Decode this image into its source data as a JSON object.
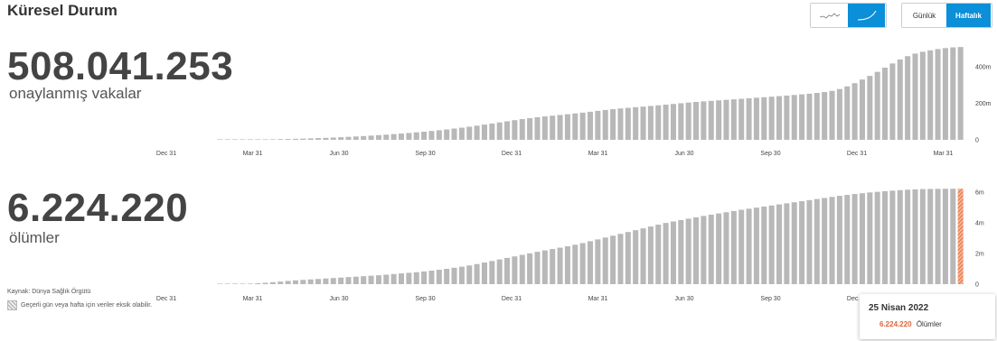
{
  "header": {
    "title": "Küresel Durum"
  },
  "controls": {
    "chart_type": [
      {
        "icon": "daily-line-chart-icon",
        "active": false
      },
      {
        "icon": "cumulative-curve-icon",
        "active": true
      }
    ],
    "period": [
      {
        "label": "Günlük",
        "active": false
      },
      {
        "label": "Haftalık",
        "active": true
      }
    ]
  },
  "cases": {
    "total": "508.041.253",
    "label": "onaylanmış vakalar"
  },
  "deaths": {
    "total": "6.224.220",
    "label": "ölümler"
  },
  "source": "Kaynak: Dünya Sağlık Örgütü",
  "legend_note": "Geçerli gün veya hafta için veriler eksik olabilir.",
  "colors": {
    "bar": "#b8b8b8",
    "highlight": "#e8764a",
    "accent": "#0a8fd8"
  },
  "tooltip": {
    "date": "25 Nisan 2022",
    "value": "6.224.220",
    "label": "Ölümler"
  },
  "chart_data": [
    {
      "type": "bar",
      "series": "weekly cumulative confirmed cases",
      "x_tick_labels": [
        "Dec 31",
        "Mar 31",
        "Jun 30",
        "Sep 30",
        "Dec 31",
        "Mar 31",
        "Jun 30",
        "Sep 30",
        "Dec 31",
        "Mar 31"
      ],
      "y_tick_labels": [
        "0",
        "200m",
        "400m"
      ],
      "ylim": [
        0,
        400000000
      ],
      "values": [
        0,
        0.1,
        0.2,
        0.4,
        0.7,
        1.1,
        1.6,
        2.2,
        2.9,
        3.7,
        4.6,
        5.6,
        6.7,
        7.9,
        9.3,
        10.8,
        12.5,
        14.3,
        16.3,
        18.4,
        20.7,
        23.1,
        25.7,
        28.4,
        31.3,
        34.4,
        37.6,
        41,
        44.6,
        48.4,
        52.5,
        56.9,
        61.6,
        66.6,
        71.9,
        77.5,
        83.3,
        89.3,
        95.4,
        101.6,
        107.7,
        113.5,
        118.8,
        123.6,
        128,
        132.1,
        136.1,
        140.1,
        144.3,
        148.8,
        153.6,
        158.5,
        163.3,
        167.7,
        171.6,
        175.2,
        178.6,
        182,
        185.4,
        189,
        192.7,
        196.5,
        200.3,
        203.9,
        207.3,
        210.4,
        213.3,
        216.1,
        218.9,
        221.7,
        224.6,
        227.5,
        230.4,
        233.3,
        236.2,
        239.2,
        242.3,
        245.5,
        248.9,
        252.6,
        256.8,
        261.6,
        268,
        278,
        292.5,
        310,
        330,
        350,
        372,
        395,
        418,
        440,
        458,
        472,
        482,
        490,
        497,
        502,
        506,
        508.04
      ]
    },
    {
      "type": "bar",
      "series": "weekly cumulative deaths",
      "x_tick_labels": [
        "Dec 31",
        "Mar 31",
        "Jun 30",
        "Sep 30",
        "Dec 31",
        "Mar 31",
        "Jun 30",
        "Sep 30",
        "Dec 31",
        "Mar 31"
      ],
      "y_tick_labels": [
        "0",
        "2m",
        "4m",
        "6m"
      ],
      "ylim": [
        0,
        6000000
      ],
      "values": [
        0,
        0.002,
        0.005,
        0.01,
        0.02,
        0.035,
        0.06,
        0.09,
        0.13,
        0.17,
        0.21,
        0.25,
        0.28,
        0.31,
        0.34,
        0.37,
        0.4,
        0.43,
        0.46,
        0.49,
        0.52,
        0.55,
        0.58,
        0.62,
        0.66,
        0.7,
        0.74,
        0.78,
        0.83,
        0.88,
        0.94,
        1,
        1.07,
        1.14,
        1.22,
        1.31,
        1.41,
        1.51,
        1.61,
        1.71,
        1.81,
        1.91,
        2.01,
        2.11,
        2.2,
        2.29,
        2.38,
        2.47,
        2.57,
        2.68,
        2.8,
        2.92,
        3.04,
        3.16,
        3.28,
        3.4,
        3.52,
        3.64,
        3.76,
        3.88,
        3.99,
        4.09,
        4.18,
        4.27,
        4.36,
        4.45,
        4.53,
        4.61,
        4.69,
        4.77,
        4.85,
        4.92,
        4.99,
        5.06,
        5.13,
        5.2,
        5.27,
        5.34,
        5.41,
        5.48,
        5.55,
        5.62,
        5.69,
        5.76,
        5.82,
        5.88,
        5.93,
        5.98,
        6.02,
        6.06,
        6.1,
        6.13,
        6.16,
        6.18,
        6.2,
        6.21,
        6.215,
        6.22,
        6.222,
        6.22422
      ]
    }
  ]
}
